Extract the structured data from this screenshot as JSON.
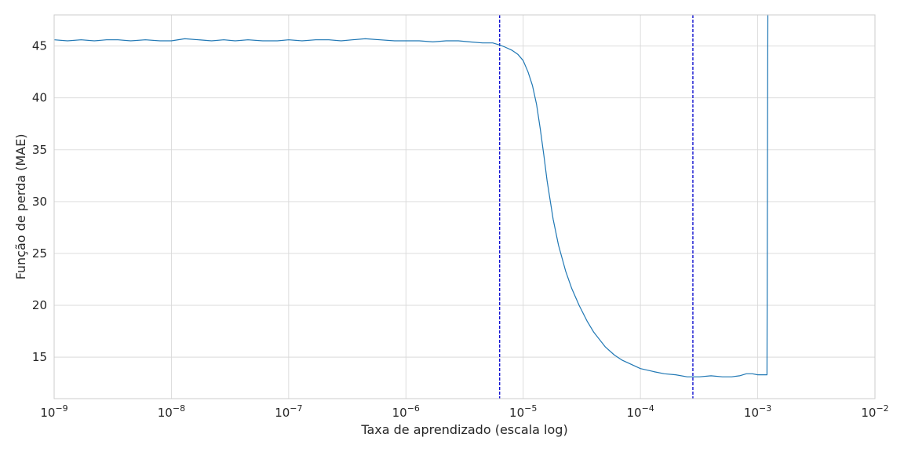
{
  "chart_data": {
    "type": "line",
    "title": "",
    "xlabel": "Taxa de aprendizado (escala log)",
    "ylabel": "Função de perda (MAE)",
    "x_scale": "log",
    "xlim": [
      1e-09,
      0.01
    ],
    "ylim": [
      11,
      48
    ],
    "grid": true,
    "legend": "none",
    "x_ticks": [
      {
        "value": 1e-09,
        "base": "10",
        "exp": "−9"
      },
      {
        "value": 1e-08,
        "base": "10",
        "exp": "−8"
      },
      {
        "value": 1e-07,
        "base": "10",
        "exp": "−7"
      },
      {
        "value": 1e-06,
        "base": "10",
        "exp": "−6"
      },
      {
        "value": 1e-05,
        "base": "10",
        "exp": "−5"
      },
      {
        "value": 0.0001,
        "base": "10",
        "exp": "−4"
      },
      {
        "value": 0.001,
        "base": "10",
        "exp": "−3"
      },
      {
        "value": 0.01,
        "base": "10",
        "exp": "−2"
      }
    ],
    "y_ticks": [
      {
        "value": 15,
        "label": "15"
      },
      {
        "value": 20,
        "label": "20"
      },
      {
        "value": 25,
        "label": "25"
      },
      {
        "value": 30,
        "label": "30"
      },
      {
        "value": 35,
        "label": "35"
      },
      {
        "value": 40,
        "label": "40"
      },
      {
        "value": 45,
        "label": "45"
      }
    ],
    "vlines": [
      {
        "x": 6.3e-06,
        "color": "#0000cc",
        "style": "dashed"
      },
      {
        "x": 0.00028,
        "color": "#0000cc",
        "style": "dashed"
      }
    ],
    "series": [
      {
        "color": "#1f77b4",
        "x": [
          1e-09,
          1.3e-09,
          1.7e-09,
          2.2e-09,
          2.8e-09,
          3.5e-09,
          4.5e-09,
          6e-09,
          8e-09,
          1e-08,
          1.3e-08,
          1.7e-08,
          2.2e-08,
          2.8e-08,
          3.5e-08,
          4.5e-08,
          6e-08,
          8e-08,
          1e-07,
          1.3e-07,
          1.7e-07,
          2.2e-07,
          2.8e-07,
          3.5e-07,
          4.5e-07,
          6e-07,
          8e-07,
          1e-06,
          1.3e-06,
          1.7e-06,
          2.2e-06,
          2.8e-06,
          3.5e-06,
          4.5e-06,
          5.5e-06,
          6.3e-06,
          7e-06,
          8e-06,
          9e-06,
          1e-05,
          1.1e-05,
          1.2e-05,
          1.3e-05,
          1.4e-05,
          1.5e-05,
          1.6e-05,
          1.8e-05,
          2e-05,
          2.3e-05,
          2.6e-05,
          3e-05,
          3.5e-05,
          4e-05,
          5e-05,
          6e-05,
          7e-05,
          8e-05,
          0.0001,
          0.00013,
          0.00016,
          0.0002,
          0.00025,
          0.00028,
          0.00032,
          0.0004,
          0.0005,
          0.0006,
          0.0007,
          0.0008,
          0.0009,
          0.001,
          0.0011,
          0.0012,
          0.00122,
          0.00123
        ],
        "y": [
          45.6,
          45.5,
          45.6,
          45.5,
          45.6,
          45.6,
          45.5,
          45.6,
          45.5,
          45.5,
          45.7,
          45.6,
          45.5,
          45.6,
          45.5,
          45.6,
          45.5,
          45.5,
          45.6,
          45.5,
          45.6,
          45.6,
          45.5,
          45.6,
          45.7,
          45.6,
          45.5,
          45.5,
          45.5,
          45.4,
          45.5,
          45.5,
          45.4,
          45.3,
          45.3,
          45.1,
          44.9,
          44.6,
          44.2,
          43.6,
          42.5,
          41.2,
          39.4,
          37.0,
          34.5,
          32.0,
          28.3,
          25.8,
          23.3,
          21.6,
          20.0,
          18.5,
          17.4,
          16.0,
          15.2,
          14.7,
          14.4,
          13.9,
          13.6,
          13.4,
          13.3,
          13.1,
          13.1,
          13.1,
          13.2,
          13.1,
          13.1,
          13.2,
          13.4,
          13.4,
          13.3,
          13.3,
          13.3,
          48.0,
          48.0
        ]
      }
    ]
  }
}
